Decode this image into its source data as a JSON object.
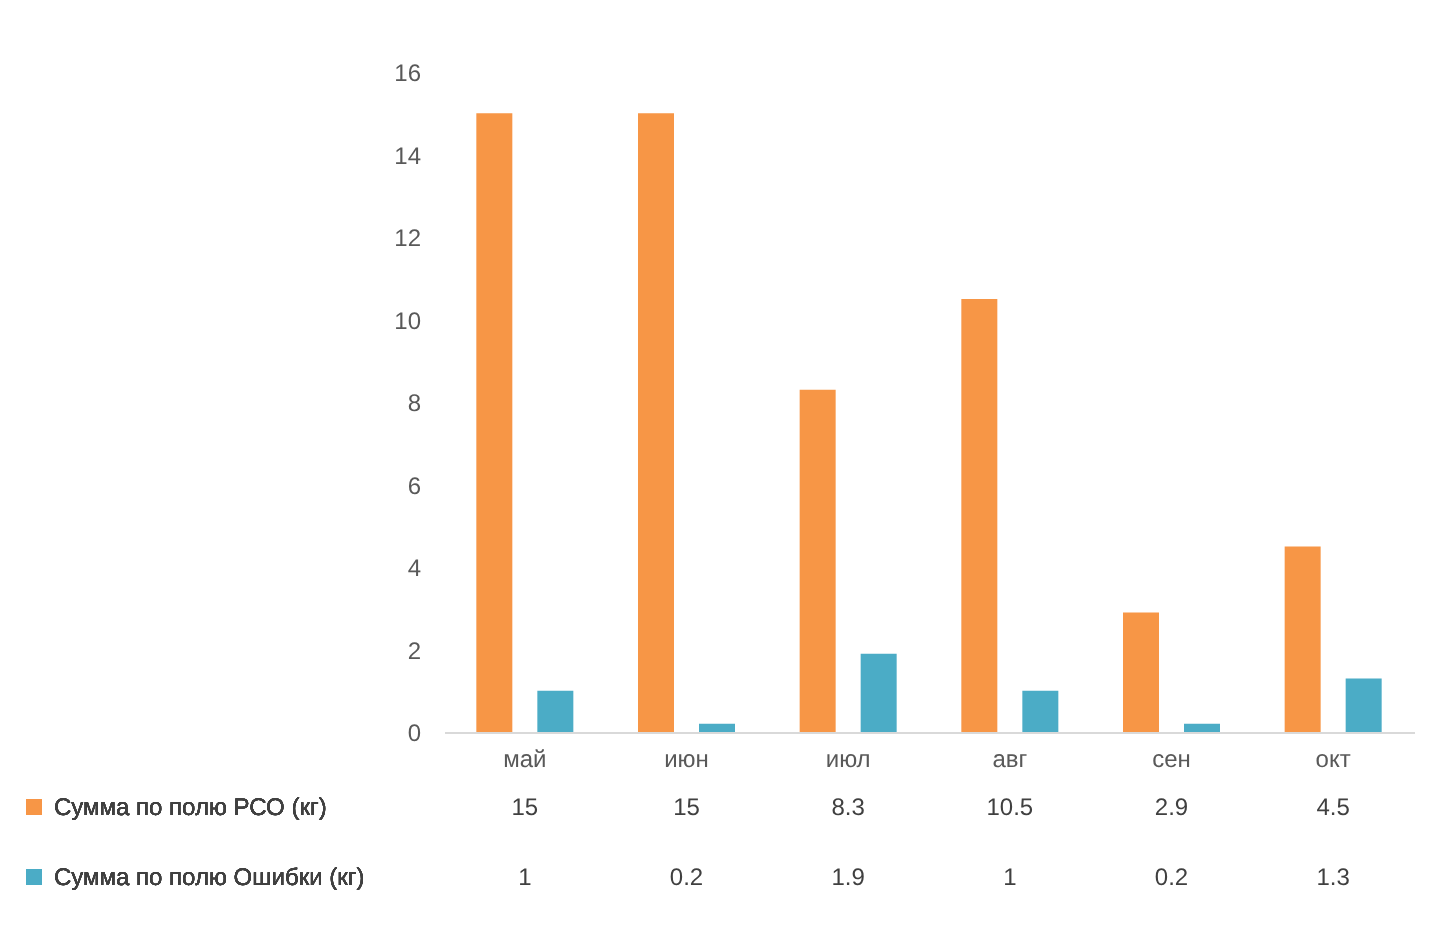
{
  "chart_data": {
    "type": "bar",
    "categories": [
      "май",
      "июн",
      "июл",
      "авг",
      "сен",
      "окт"
    ],
    "series": [
      {
        "name": "Сумма по полю РСО (кг)",
        "color": "#f79646",
        "values": [
          15,
          15,
          8.3,
          10.5,
          2.9,
          4.5
        ]
      },
      {
        "name": "Сумма по полю Ошибки (кг)",
        "color": "#4bacc6",
        "values": [
          1,
          0.2,
          1.9,
          1,
          0.2,
          1.3
        ]
      }
    ],
    "ylim": [
      0,
      16
    ],
    "yticks": [
      0,
      2,
      4,
      6,
      8,
      10,
      12,
      14,
      16
    ],
    "data_labels": true,
    "legend": "bottom"
  }
}
